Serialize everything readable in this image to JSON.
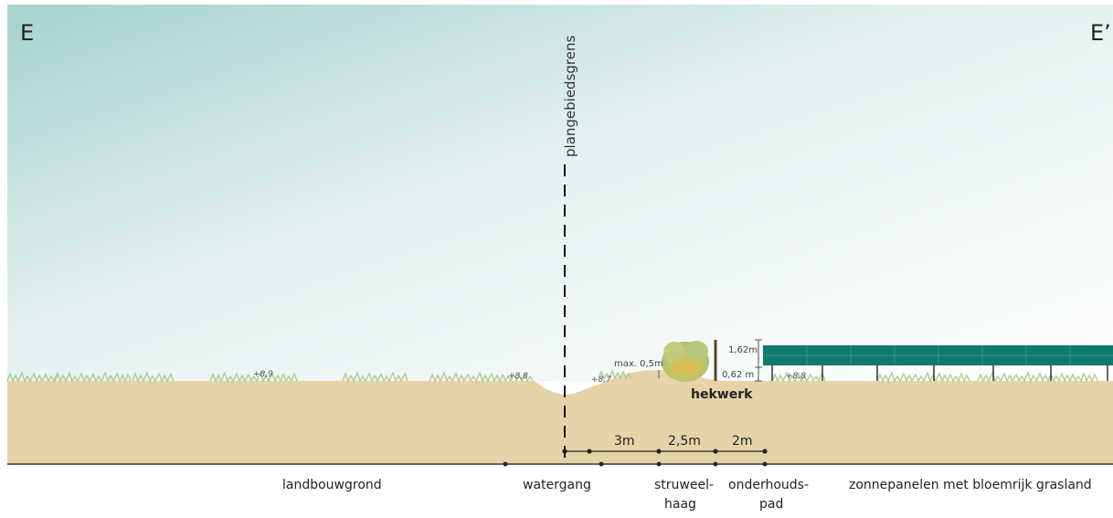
{
  "section": {
    "start_marker": "E",
    "end_marker": "E’",
    "plan_boundary_label": "plangebiedsgrens",
    "fence_label": "hekwerk",
    "elevations": {
      "left_field": "+8,9",
      "left_bank": "+8,8",
      "ditch_bank": "+8,7",
      "right_field": "+8,8"
    },
    "heights": {
      "hedge_max": "max. 0,5m",
      "fence_top": "1,62m",
      "fence_bottom": "0,62 m"
    },
    "dimensions": {
      "d1": "3m",
      "d2": "2,5m",
      "d3": "2m"
    },
    "zones": {
      "landbouwgrond": "landbouwgrond",
      "watergang": "watergang",
      "struweel_line1": "struweel-",
      "struweel_line2": "haag",
      "onderhoud_line1": "onderhouds-",
      "onderhoud_line2": "pad",
      "zonnepanelen": "zonnepanelen met bloemrijk grasland"
    },
    "colors": {
      "sky_top": "#a9d4cf",
      "sky_bottom": "#ffffff",
      "soil": "#e6d3a8",
      "water": "#9fd8e3",
      "grass": "#b9cf98",
      "shrub": "#c9c46a",
      "panel": "#0f7a6c",
      "line": "#222222"
    }
  }
}
